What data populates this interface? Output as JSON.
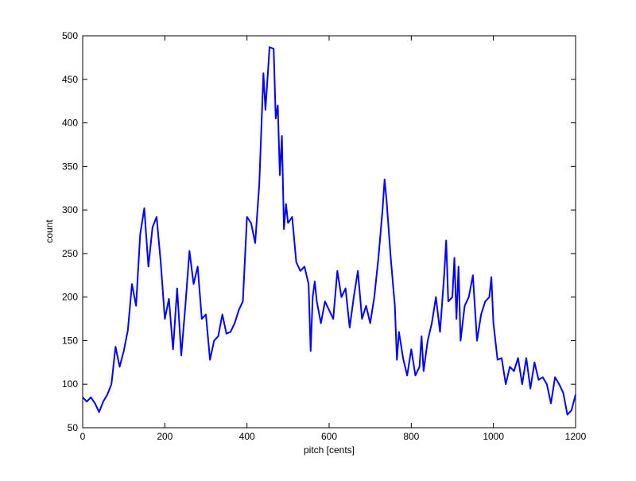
{
  "chart_data": {
    "type": "line",
    "xlabel": "pitch [cents]",
    "ylabel": "count",
    "x": [
      0,
      10,
      20,
      30,
      40,
      50,
      60,
      70,
      80,
      90,
      100,
      110,
      120,
      130,
      140,
      150,
      160,
      170,
      180,
      190,
      200,
      210,
      220,
      230,
      240,
      250,
      260,
      270,
      280,
      290,
      300,
      310,
      320,
      330,
      340,
      350,
      360,
      370,
      380,
      390,
      400,
      410,
      420,
      430,
      440,
      445,
      455,
      465,
      470,
      475,
      480,
      485,
      490,
      495,
      500,
      510,
      520,
      530,
      540,
      550,
      555,
      560,
      565,
      570,
      580,
      590,
      600,
      610,
      620,
      630,
      640,
      650,
      660,
      670,
      680,
      690,
      700,
      710,
      720,
      730,
      735,
      740,
      750,
      760,
      765,
      770,
      780,
      790,
      800,
      810,
      820,
      825,
      830,
      840,
      850,
      860,
      870,
      880,
      885,
      890,
      900,
      905,
      910,
      915,
      920,
      930,
      940,
      950,
      960,
      970,
      980,
      990,
      995,
      1000,
      1010,
      1020,
      1030,
      1040,
      1050,
      1060,
      1070,
      1080,
      1090,
      1100,
      1110,
      1120,
      1130,
      1140,
      1150,
      1160,
      1170,
      1180,
      1190,
      1200
    ],
    "series": [
      {
        "name": "count",
        "color": "#0000ff",
        "values": [
          85,
          80,
          85,
          78,
          68,
          80,
          88,
          100,
          143,
          120,
          138,
          162,
          215,
          190,
          272,
          302,
          235,
          280,
          292,
          240,
          175,
          198,
          140,
          210,
          133,
          190,
          253,
          215,
          235,
          175,
          180,
          128,
          150,
          155,
          180,
          158,
          160,
          170,
          185,
          195,
          292,
          285,
          262,
          330,
          457,
          415,
          487,
          485,
          405,
          420,
          340,
          385,
          278,
          307,
          285,
          292,
          240,
          230,
          235,
          215,
          138,
          200,
          218,
          195,
          170,
          195,
          185,
          175,
          230,
          200,
          210,
          165,
          200,
          230,
          175,
          190,
          170,
          200,
          245,
          300,
          335,
          310,
          245,
          190,
          128,
          160,
          130,
          110,
          140,
          110,
          120,
          155,
          115,
          150,
          170,
          200,
          160,
          225,
          265,
          195,
          200,
          245,
          175,
          235,
          150,
          190,
          200,
          225,
          150,
          180,
          195,
          200,
          223,
          170,
          128,
          130,
          100,
          120,
          115,
          130,
          100,
          130,
          95,
          125,
          105,
          108,
          100,
          78,
          108,
          100,
          90,
          65,
          70,
          88
        ]
      }
    ],
    "xlim": [
      0,
      1200
    ],
    "ylim": [
      50,
      500
    ],
    "xticks": [
      0,
      200,
      400,
      600,
      800,
      1000,
      1200
    ],
    "yticks": [
      50,
      100,
      150,
      200,
      250,
      300,
      350,
      400,
      450,
      500
    ]
  }
}
